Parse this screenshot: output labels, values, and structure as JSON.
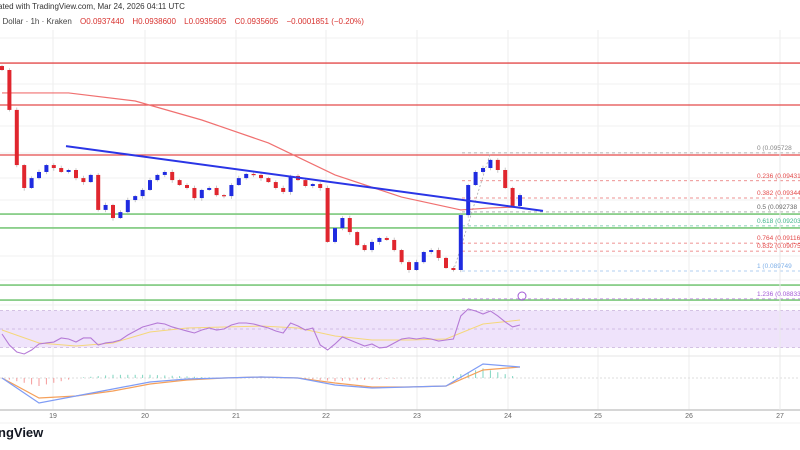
{
  "header": {
    "published": "ated with TradingView.com, Mar 24, 2026 04:11 UTC",
    "symbol": ". Dollar · 1h · Kraken",
    "open": "O0.0937440",
    "high": "H0.0938600",
    "low": "L0.0935605",
    "close": "C0.0935605",
    "change": "−0.0001851 (−0.20%)"
  },
  "logo": "ngView",
  "colors": {
    "up": "#1f2be0",
    "down": "#e0262e",
    "ma": "#f07070",
    "trendline": "#2a35e6",
    "resistance": "#e34a4a",
    "support": "#7cc87c",
    "rsi": "#b57ad6",
    "rsi_ma": "#f5d77a",
    "rsi_band": "#efe3fb",
    "macd": "#7f9cf5",
    "signal": "#f5a05a"
  },
  "chart_data": {
    "type": "candlestick",
    "x_ticks": [
      "19",
      "20",
      "21",
      "22",
      "23",
      "24",
      "25",
      "26",
      "27"
    ],
    "closes": [
      0.09992,
      0.0979,
      0.09511,
      0.09395,
      0.09445,
      0.09476,
      0.09511,
      0.09496,
      0.09476,
      0.09486,
      0.09445,
      0.09425,
      0.09461,
      0.09284,
      0.09309,
      0.09243,
      0.09273,
      0.09334,
      0.09354,
      0.09385,
      0.09435,
      0.09461,
      0.09476,
      0.09435,
      0.0941,
      0.09395,
      0.09344,
      0.09385,
      0.09395,
      0.09359,
      0.09354,
      0.0941,
      0.09445,
      0.09466,
      0.09461,
      0.09445,
      0.09425,
      0.09395,
      0.09375,
      0.09456,
      0.09435,
      0.09405,
      0.09415,
      0.09395,
      0.09122,
      0.09192,
      0.09243,
      0.09172,
      0.09106,
      0.09081,
      0.09122,
      0.09142,
      0.09132,
      0.09081,
      0.0902,
      0.0898,
      0.0902,
      0.09071,
      0.09081,
      0.09041,
      0.0899,
      0.0898,
      0.09258,
      0.0941,
      0.09476,
      0.09496,
      0.09537,
      0.09486,
      0.09395,
      0.09304,
      0.09359
    ],
    "moving_average": [
      0.09876,
      0.09876,
      0.09835,
      0.09739,
      0.09623,
      0.09461,
      0.09349,
      0.09284,
      0.09294,
      0.09299
    ],
    "trendline": {
      "start": 0.09607,
      "end": 0.09279
    },
    "resistance_levels": [
      0.10027,
      0.09815,
      0.09562
    ],
    "support_levels": [
      0.09263,
      0.09193,
      0.08904,
      0.08828
    ],
    "fib_levels": [
      {
        "level": 0,
        "label": "0 (0.095728",
        "color": "#888888"
      },
      {
        "level": 0.236,
        "label": "0.236 (0.094317",
        "color": "#e34a4a"
      },
      {
        "level": 0.382,
        "label": "0.382 (0.093444",
        "color": "#e34a4a"
      },
      {
        "level": 0.5,
        "label": "0.5 (0.092738",
        "color": "#666666"
      },
      {
        "level": 0.618,
        "label": "0.618 (0.092033",
        "color": "#3fb58a"
      },
      {
        "level": 0.764,
        "label": "0.764 (0.091160",
        "color": "#e34a4a"
      },
      {
        "level": 0.832,
        "label": "0.832 (0.090753",
        "color": "#e34a4a"
      },
      {
        "level": 1,
        "label": "1 (0.089749",
        "color": "#7fb0e8"
      },
      {
        "level": 1.236,
        "label": "1.236 (0.088338",
        "color": "#a35ad6"
      }
    ],
    "rsi": [
      44.6,
      32.7,
      25.1,
      23,
      27.3,
      33.8,
      34.9,
      35.9,
      40.3,
      39.2,
      35.9,
      40.3,
      40.3,
      32.7,
      34.9,
      35.9,
      38.1,
      43.5,
      47.8,
      52.2,
      54.3,
      56.5,
      55.4,
      52.2,
      50,
      47.8,
      45.7,
      48.9,
      51.1,
      48.9,
      50,
      54.3,
      56.5,
      56.5,
      55.4,
      53.2,
      51.1,
      47.8,
      45.7,
      56.5,
      53.2,
      48.9,
      51.1,
      32.7,
      27.3,
      33.8,
      41.4,
      38.1,
      34.9,
      31.6,
      33.8,
      29.5,
      30.5,
      34.9,
      39.2,
      40.3,
      39.2,
      40.3,
      39.2,
      37,
      38.1,
      39.2,
      64.1,
      71.6,
      69.5,
      66.2,
      69.5,
      64.1,
      57.6,
      52.2,
      54.3
    ],
    "rsi_ma": [
      48.9,
      34.9,
      31.6,
      34.9,
      46.8,
      51.1,
      52.2,
      53.2,
      51.1,
      42.4,
      38.1,
      38.1,
      39.2,
      55.4,
      59.7
    ],
    "rsi_bands": [
      30,
      50,
      70
    ],
    "macd": [
      0,
      -0.00025,
      -0.00018,
      -0.00011,
      -4e-05,
      -1e-05,
      0,
      1e-05,
      0,
      -7e-05,
      -0.0001,
      -9e-05,
      -8e-05,
      0.00014,
      0.00011
    ],
    "signal": [
      0,
      -0.0002,
      -0.00018,
      -0.00013,
      -6e-05,
      -2e-05,
      0,
      1e-05,
      0,
      -5e-05,
      -9e-05,
      -9e-05,
      -8e-05,
      8e-05,
      0.00011
    ]
  }
}
